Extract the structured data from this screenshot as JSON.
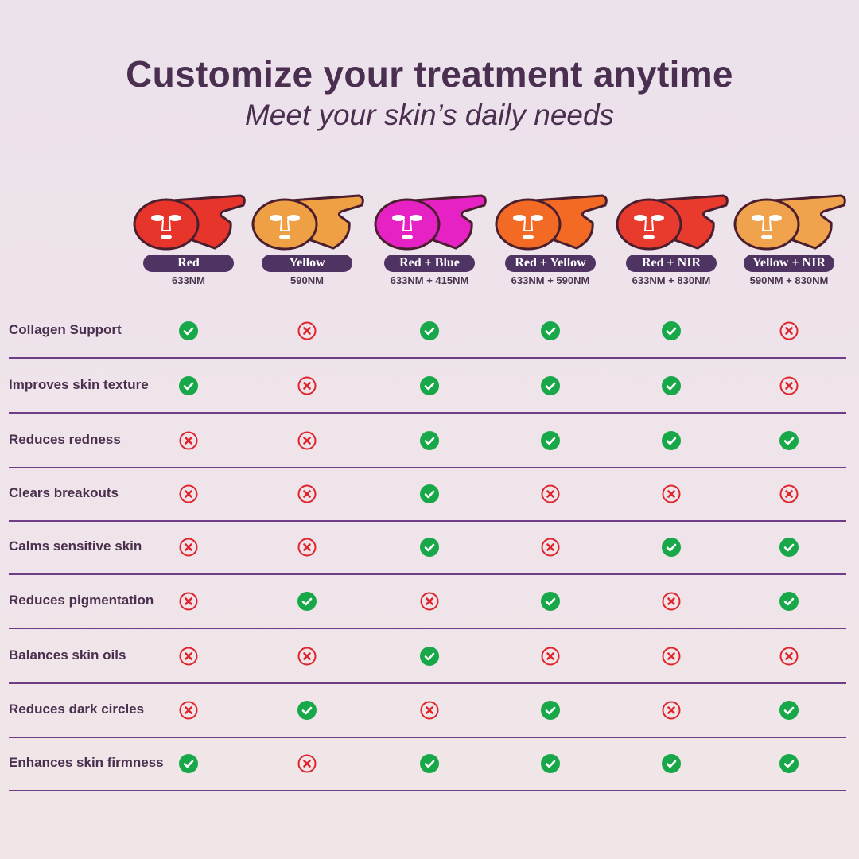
{
  "header": {
    "title": "Customize your treatment anytime",
    "subtitle": "Meet your skin’s daily needs"
  },
  "columns": [
    {
      "label": "Red",
      "wavelength": "633NM",
      "color": "#e8352b"
    },
    {
      "label": "Yellow",
      "wavelength": "590NM",
      "color": "#f0a044"
    },
    {
      "label": "Red + Blue",
      "wavelength": "633NM + 415NM",
      "color": "#e622c4"
    },
    {
      "label": "Red + Yellow",
      "wavelength": "633NM + 590NM",
      "color": "#f36a24"
    },
    {
      "label": "Red + NIR",
      "wavelength": "633NM + 830NM",
      "color": "#e83b2e"
    },
    {
      "label": "Yellow + NIR",
      "wavelength": "590NM + 830NM",
      "color": "#f0a24c"
    }
  ],
  "rows": [
    {
      "label": "Collagen Support",
      "values": [
        true,
        false,
        true,
        true,
        true,
        false
      ]
    },
    {
      "label": "Improves skin texture",
      "values": [
        true,
        false,
        true,
        true,
        true,
        false
      ]
    },
    {
      "label": "Reduces redness",
      "values": [
        false,
        false,
        true,
        true,
        true,
        true
      ]
    },
    {
      "label": "Clears breakouts",
      "values": [
        false,
        false,
        true,
        false,
        false,
        false
      ]
    },
    {
      "label": "Calms sensitive skin",
      "values": [
        false,
        false,
        true,
        false,
        true,
        true
      ]
    },
    {
      "label": "Reduces pigmentation",
      "values": [
        false,
        true,
        false,
        true,
        false,
        true
      ]
    },
    {
      "label": "Balances skin oils",
      "values": [
        false,
        false,
        true,
        false,
        false,
        false
      ]
    },
    {
      "label": "Reduces dark circles",
      "values": [
        false,
        true,
        false,
        true,
        false,
        true
      ]
    },
    {
      "label": "Enhances skin firmness",
      "values": [
        true,
        false,
        true,
        true,
        true,
        true
      ]
    }
  ],
  "colors": {
    "check": "#18a84a",
    "cross": "#e0242c",
    "pill": "#4f3463",
    "text": "#4a2f4e"
  }
}
